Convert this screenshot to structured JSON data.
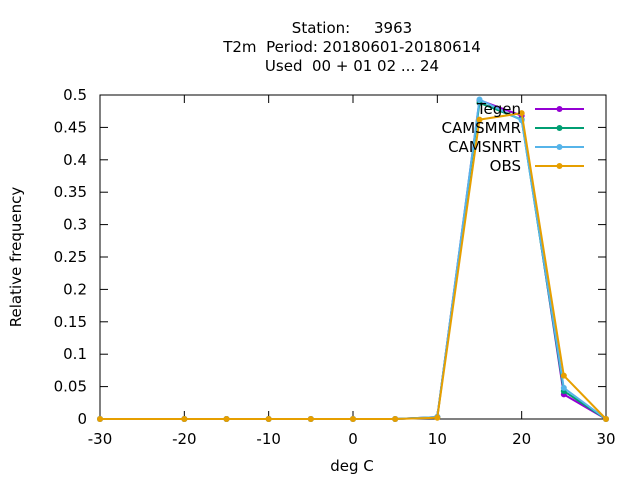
{
  "chart_data": {
    "type": "line",
    "title_lines": [
      "Station:     3963",
      "T2m  Period: 20180601-20180614",
      "Used  00 + 01 02 ... 24"
    ],
    "xlabel": "deg C",
    "ylabel": "Relative frequency",
    "xlim": [
      -30,
      30
    ],
    "ylim": [
      0,
      0.5
    ],
    "xticks": [
      -30,
      -20,
      -10,
      0,
      10,
      20,
      30
    ],
    "yticks": [
      0,
      0.05,
      0.1,
      0.15,
      0.2,
      0.25,
      0.3,
      0.35,
      0.4,
      0.45,
      0.5
    ],
    "ytick_labels": [
      "0",
      "0.05",
      "0.1",
      "0.15",
      "0.2",
      "0.25",
      "0.3",
      "0.35",
      "0.4",
      "0.45",
      "0.5"
    ],
    "grid": false,
    "legend_position": "top-right",
    "x": [
      -30,
      -20,
      -15,
      -10,
      -5,
      0,
      5,
      10,
      15,
      20,
      25,
      30
    ],
    "series": [
      {
        "name": "Tegen",
        "color": "#9400d3",
        "values": [
          0,
          0,
          0,
          0,
          0,
          0,
          0,
          0.003,
          0.492,
          0.468,
          0.038,
          0
        ]
      },
      {
        "name": "CAMSMMR",
        "color": "#009e73",
        "values": [
          0,
          0,
          0,
          0,
          0,
          0,
          0,
          0.003,
          0.488,
          0.462,
          0.043,
          0
        ]
      },
      {
        "name": "CAMSNRT",
        "color": "#56b4e9",
        "values": [
          0,
          0,
          0,
          0,
          0,
          0,
          0,
          0.003,
          0.493,
          0.461,
          0.048,
          0
        ]
      },
      {
        "name": "OBS",
        "color": "#e69f00",
        "values": [
          0,
          0,
          0,
          0,
          0,
          0,
          0,
          0.002,
          0.462,
          0.472,
          0.067,
          0
        ]
      }
    ]
  }
}
